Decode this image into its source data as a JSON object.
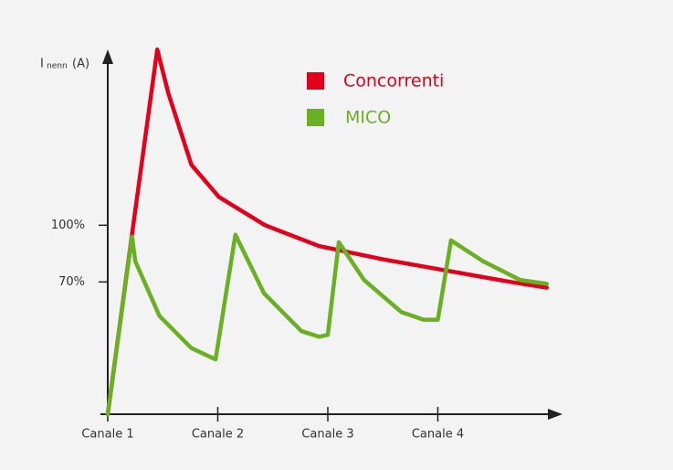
{
  "chart_data": {
    "type": "line",
    "y_label": {
      "symbol": "I",
      "subscript": "nenn",
      "unit": "(A)"
    },
    "xlim": [
      1,
      5.1
    ],
    "ylim": [
      0,
      195
    ],
    "xticks": [
      {
        "value": 1,
        "label": "Canale 1"
      },
      {
        "value": 2,
        "label": "Canale 2"
      },
      {
        "value": 3,
        "label": "Canale 3"
      },
      {
        "value": 4,
        "label": "Canale 4"
      }
    ],
    "yticks": [
      {
        "value": 70,
        "label": "70%"
      },
      {
        "value": 100,
        "label": "100%"
      }
    ],
    "series": [
      {
        "name": "Concorrenti",
        "color": "#e3001b",
        "x": [
          1,
          1.22,
          1.45,
          1.55,
          1.76,
          2.01,
          2.43,
          2.92,
          3.5,
          4.08,
          4.66,
          4.99
        ],
        "values": [
          0,
          95,
          193,
          170,
          132,
          115,
          100,
          89,
          82,
          76,
          70,
          67
        ]
      },
      {
        "name": "MICO",
        "color": "#6ab023",
        "x": [
          1,
          1.22,
          1.25,
          1.47,
          1.76,
          1.98,
          2.16,
          2.42,
          2.76,
          2.92,
          3.0,
          3.1,
          3.33,
          3.67,
          3.87,
          4.0,
          4.12,
          4.41,
          4.75,
          4.99
        ],
        "values": [
          0,
          94,
          81,
          52,
          35,
          29,
          95,
          64,
          44,
          41,
          42,
          91,
          71,
          54,
          50,
          50,
          92,
          81,
          71,
          69
        ]
      }
    ]
  }
}
